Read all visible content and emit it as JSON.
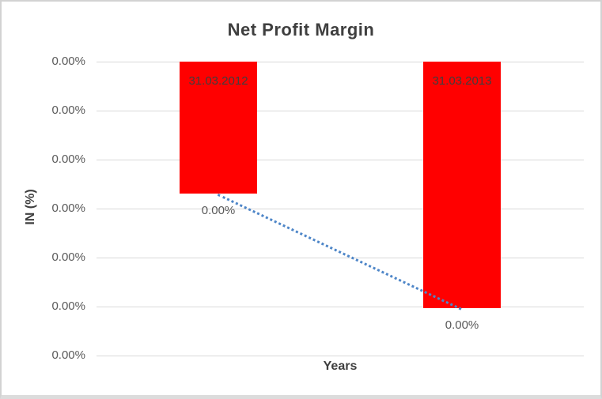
{
  "chart_data": {
    "type": "bar",
    "title": "Net Profit Margin",
    "xlabel": "Years",
    "ylabel": "IN (%)",
    "categories": [
      "31.03.2012",
      "31.03.2013"
    ],
    "series": [
      {
        "name": "Net Profit Margin",
        "color": "#ff0000",
        "values": [
          -2.69,
          -5.03
        ],
        "value_labels": [
          "0.00%",
          "0.00%"
        ]
      }
    ],
    "value_units": "gridline intervals (every axis tick label displays 0.00%)",
    "ylim": [
      0,
      -6
    ],
    "y_tick_labels": [
      "0.00%",
      "0.00%",
      "0.00%",
      "0.00%",
      "0.00%",
      "0.00%",
      "0.00%"
    ],
    "grid": "horizontal",
    "legend": "none",
    "bars_hang_from_zero_line_at_top": true,
    "trendline": {
      "type": "linear",
      "style": "dotted",
      "color": "#4e86c8",
      "connects": "bottom ends of the two bars"
    }
  },
  "colors": {
    "bar_fill": "#ff0000",
    "gridline": "#d9d9d9",
    "trendline": "#4e86c8",
    "title_text": "#3f3f3f",
    "tick_text": "#595959",
    "frame_border": "#d2d2d2"
  }
}
